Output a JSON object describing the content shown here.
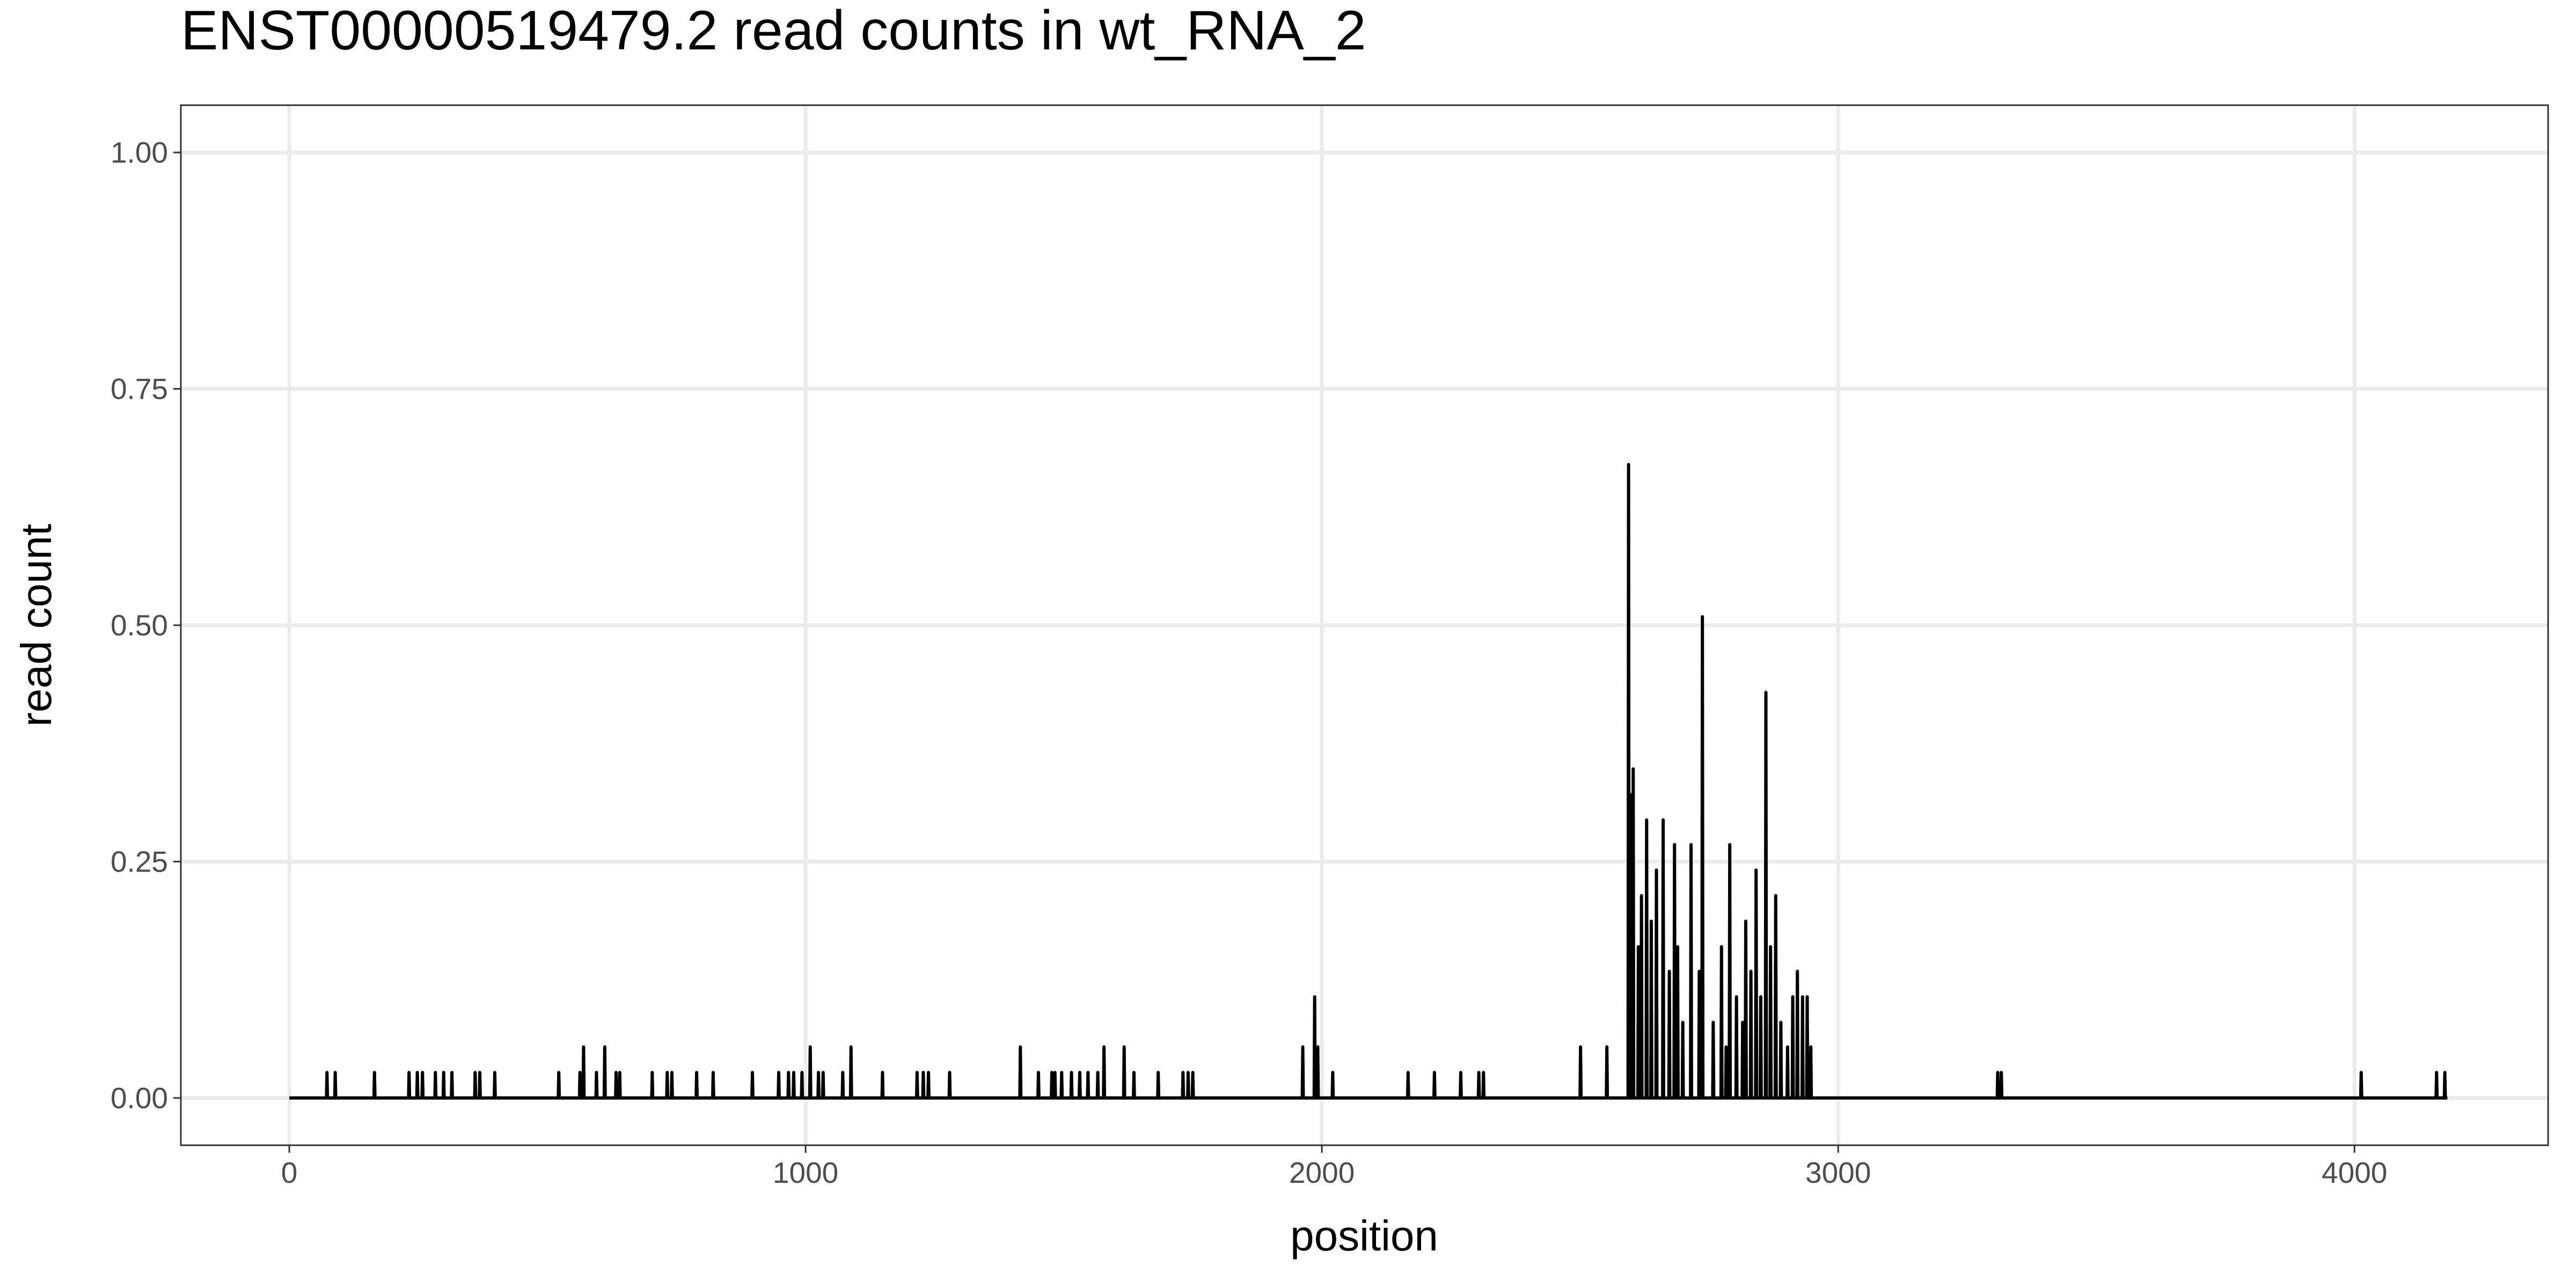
{
  "chart_data": {
    "type": "line",
    "title": "ENST00000519479.2  read counts in  wt_RNA_2",
    "xlabel": "position",
    "ylabel": "read count",
    "xlim": [
      -210,
      4375
    ],
    "xticks": [
      0,
      1000,
      2000,
      3000,
      4000
    ],
    "ylim": [
      -0.05,
      1.05
    ],
    "yticks": [
      {
        "value": 0,
        "label": "0.00"
      },
      {
        "value": 0.25,
        "label": "0.25"
      },
      {
        "value": 0.5,
        "label": "0.50"
      },
      {
        "value": 0.75,
        "label": "0.75"
      },
      {
        "value": 1,
        "label": "1.00"
      }
    ],
    "grid": true,
    "series": [
      {
        "color": "#000000",
        "x": [
          0,
          72,
          73,
          74,
          88,
          89,
          90,
          164,
          165,
          166,
          231,
          232,
          233,
          247,
          248,
          249,
          257,
          258,
          259,
          282,
          283,
          284,
          298,
          299,
          300,
          314,
          315,
          316,
          359,
          360,
          361,
          368,
          369,
          370,
          397,
          398,
          399,
          521,
          522,
          523,
          562,
          563,
          564,
          569,
          570,
          571,
          594,
          595,
          596,
          610,
          611,
          612,
          632,
          633,
          634,
          639,
          640,
          641,
          702,
          703,
          704,
          731,
          732,
          733,
          740,
          741,
          742,
          788,
          789,
          790,
          820,
          821,
          822,
          896,
          897,
          898,
          947,
          948,
          949,
          966,
          967,
          968,
          976,
          977,
          978,
          992,
          993,
          994,
          1008,
          1009,
          1010,
          1024,
          1025,
          1026,
          1033,
          1034,
          1035,
          1071,
          1072,
          1073,
          1087,
          1088,
          1089,
          1148,
          1149,
          1150,
          1215,
          1216,
          1217,
          1227,
          1228,
          1229,
          1237,
          1238,
          1239,
          1278,
          1279,
          1280,
          1415,
          1416,
          1417,
          1450,
          1451,
          1452,
          1476,
          1477,
          1478,
          1482,
          1483,
          1484,
          1495,
          1496,
          1497,
          1514,
          1515,
          1516,
          1530,
          1531,
          1532,
          1546,
          1547,
          1548,
          1565,
          1566,
          1567,
          1577,
          1578,
          1579,
          1616,
          1617,
          1618,
          1635,
          1636,
          1637,
          1682,
          1683,
          1684,
          1730,
          1731,
          1732,
          1740,
          1741,
          1742,
          1749,
          1750,
          1751,
          1962,
          1963,
          1964,
          1985,
          1986,
          1987,
          1991,
          1992,
          1993,
          2020,
          2021,
          2022,
          2166,
          2167,
          2168,
          2217,
          2218,
          2219,
          2268,
          2269,
          2270,
          2303,
          2304,
          2305,
          2312,
          2313,
          2314,
          2500,
          2501,
          2502,
          2551,
          2552,
          2553,
          2593,
          2594,
          2595,
          2599,
          2600,
          2601,
          2602,
          2603,
          2604,
          2612,
          2613,
          2614,
          2618,
          2619,
          2620,
          2628,
          2629,
          2630,
          2637,
          2638,
          2639,
          2647,
          2648,
          2649,
          2660,
          2661,
          2662,
          2672,
          2673,
          2674,
          2682,
          2683,
          2684,
          2688,
          2689,
          2690,
          2698,
          2699,
          2700,
          2714,
          2715,
          2716,
          2730,
          2731,
          2732,
          2736,
          2737,
          2738,
          2757,
          2758,
          2759,
          2773,
          2774,
          2775,
          2782,
          2783,
          2784,
          2789,
          2790,
          2791,
          2802,
          2803,
          2804,
          2814,
          2815,
          2816,
          2820,
          2821,
          2822,
          2830,
          2831,
          2832,
          2840,
          2841,
          2842,
          2849,
          2850,
          2851,
          2859,
          2860,
          2861,
          2868,
          2869,
          2870,
          2878,
          2879,
          2880,
          2888,
          2889,
          2890,
          2901,
          2902,
          2903,
          2911,
          2912,
          2913,
          2920,
          2921,
          2922,
          2930,
          2931,
          2932,
          2939,
          2940,
          2941,
          2946,
          2947,
          2948,
          3308,
          3309,
          3310,
          3315,
          3316,
          3317,
          4012,
          4013,
          4014,
          4158,
          4159,
          4160,
          4174,
          4175,
          4176,
          4180
        ],
        "values": [
          0,
          0,
          0.027,
          0,
          0,
          0.027,
          0,
          0,
          0.027,
          0,
          0,
          0.027,
          0,
          0,
          0.027,
          0,
          0,
          0.027,
          0,
          0,
          0.027,
          0,
          0,
          0.027,
          0,
          0,
          0.027,
          0,
          0,
          0.027,
          0,
          0,
          0.027,
          0,
          0,
          0.027,
          0,
          0,
          0.027,
          0,
          0,
          0.027,
          0,
          0,
          0.054,
          0,
          0,
          0.027,
          0,
          0,
          0.054,
          0,
          0,
          0.027,
          0,
          0,
          0.027,
          0,
          0,
          0.027,
          0,
          0,
          0.027,
          0,
          0,
          0.027,
          0,
          0,
          0.027,
          0,
          0,
          0.027,
          0,
          0,
          0.027,
          0,
          0,
          0.027,
          0,
          0,
          0.027,
          0,
          0,
          0.027,
          0,
          0,
          0.027,
          0,
          0,
          0.054,
          0,
          0,
          0.027,
          0,
          0,
          0.027,
          0,
          0,
          0.027,
          0,
          0,
          0.054,
          0,
          0,
          0.027,
          0,
          0,
          0.027,
          0,
          0,
          0.027,
          0,
          0,
          0.027,
          0,
          0,
          0.027,
          0,
          0,
          0.054,
          0,
          0,
          0.027,
          0,
          0,
          0.027,
          0,
          0,
          0.027,
          0,
          0,
          0.027,
          0,
          0,
          0.027,
          0,
          0,
          0.027,
          0,
          0,
          0.027,
          0,
          0,
          0.027,
          0,
          0,
          0.054,
          0,
          0,
          0.054,
          0,
          0,
          0.027,
          0,
          0,
          0.027,
          0,
          0,
          0.027,
          0,
          0,
          0.027,
          0,
          0,
          0.027,
          0,
          0,
          0.054,
          0,
          0,
          0.107,
          0,
          0,
          0.054,
          0,
          0,
          0.027,
          0,
          0,
          0.027,
          0,
          0,
          0.027,
          0,
          0,
          0.027,
          0,
          0,
          0.027,
          0,
          0,
          0.027,
          0,
          0,
          0.054,
          0,
          0,
          0.054,
          0,
          0,
          0.67,
          0,
          0,
          0.321,
          0,
          0,
          0.348,
          0,
          0,
          0.16,
          0,
          0,
          0.214,
          0,
          0,
          0.294,
          0,
          0,
          0.187,
          0,
          0,
          0.241,
          0,
          0,
          0.294,
          0,
          0,
          0.134,
          0,
          0,
          0.268,
          0,
          0,
          0.16,
          0,
          0,
          0.08,
          0,
          0,
          0.268,
          0,
          0,
          0.134,
          0,
          0,
          0.509,
          0,
          0,
          0.08,
          0,
          0,
          0.16,
          0,
          0,
          0.054,
          0,
          0,
          0.268,
          0,
          0,
          0.107,
          0,
          0,
          0.08,
          0,
          0,
          0.187,
          0,
          0,
          0.134,
          0,
          0,
          0.241,
          0,
          0,
          0.107,
          0,
          0,
          0.429,
          0,
          0,
          0.16,
          0,
          0,
          0.214,
          0,
          0,
          0.08,
          0,
          0,
          0.054,
          0,
          0,
          0.107,
          0,
          0,
          0.134,
          0,
          0,
          0.107,
          0,
          0,
          0.107,
          0,
          0,
          0.054,
          0,
          0,
          0.027,
          0,
          0,
          0.027,
          0,
          0,
          0.027,
          0,
          0,
          0.027,
          0,
          0,
          0.027,
          0,
          0
        ]
      }
    ]
  }
}
